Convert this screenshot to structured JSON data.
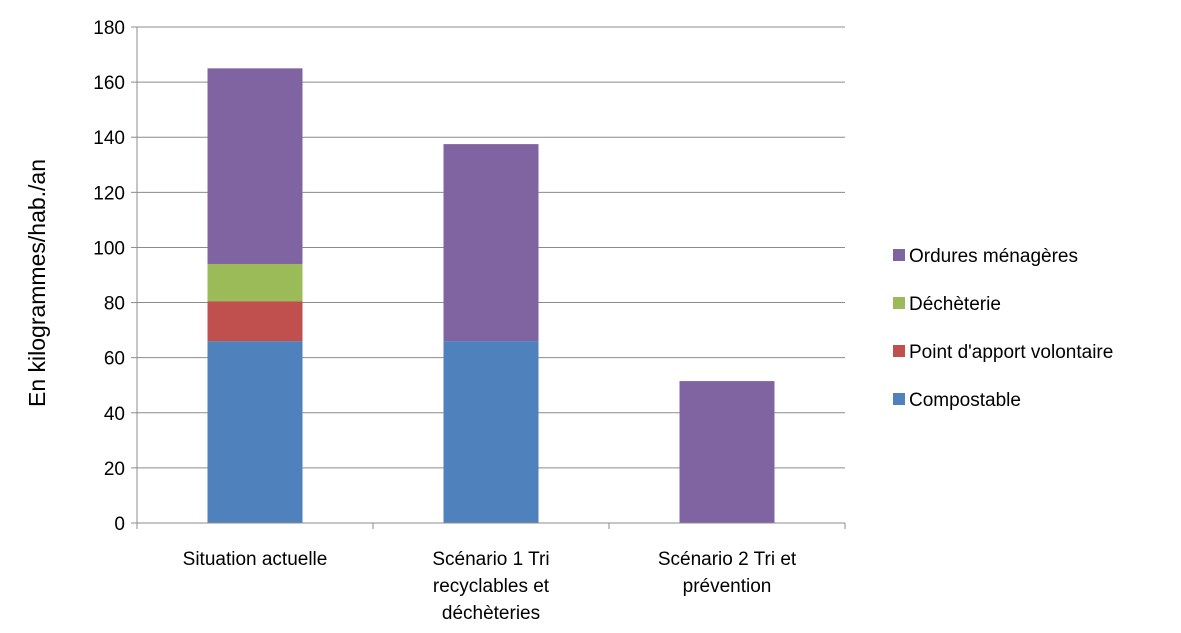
{
  "chart_data": {
    "type": "bar",
    "stacked": true,
    "categories": [
      [
        "Situation actuelle"
      ],
      [
        "Scénario 1 Tri",
        "recyclables et",
        "déchèteries"
      ],
      [
        "Scénario 2 Tri et",
        "prévention"
      ]
    ],
    "ylabel": "En   kilogrammes/hab./an",
    "ylim": [
      0,
      180
    ],
    "yticks": [
      0,
      20,
      40,
      60,
      80,
      100,
      120,
      140,
      160,
      180
    ],
    "grid": true,
    "legend_position": "right",
    "series": [
      {
        "name": "Compostable",
        "color": "#4F81BD",
        "values": [
          66,
          66,
          0
        ]
      },
      {
        "name": "Point d'apport volontaire",
        "color": "#C0504D",
        "values": [
          14.5,
          0,
          0
        ]
      },
      {
        "name": "Déchèterie",
        "color": "#9BBB59",
        "values": [
          13.5,
          0,
          0
        ]
      },
      {
        "name": "Ordures ménagères",
        "color": "#8064A2",
        "values": [
          71,
          71.5,
          51.5
        ]
      }
    ],
    "legend_order": [
      "Ordures ménagères",
      "Déchèterie",
      "Point d'apport volontaire",
      "Compostable"
    ]
  }
}
